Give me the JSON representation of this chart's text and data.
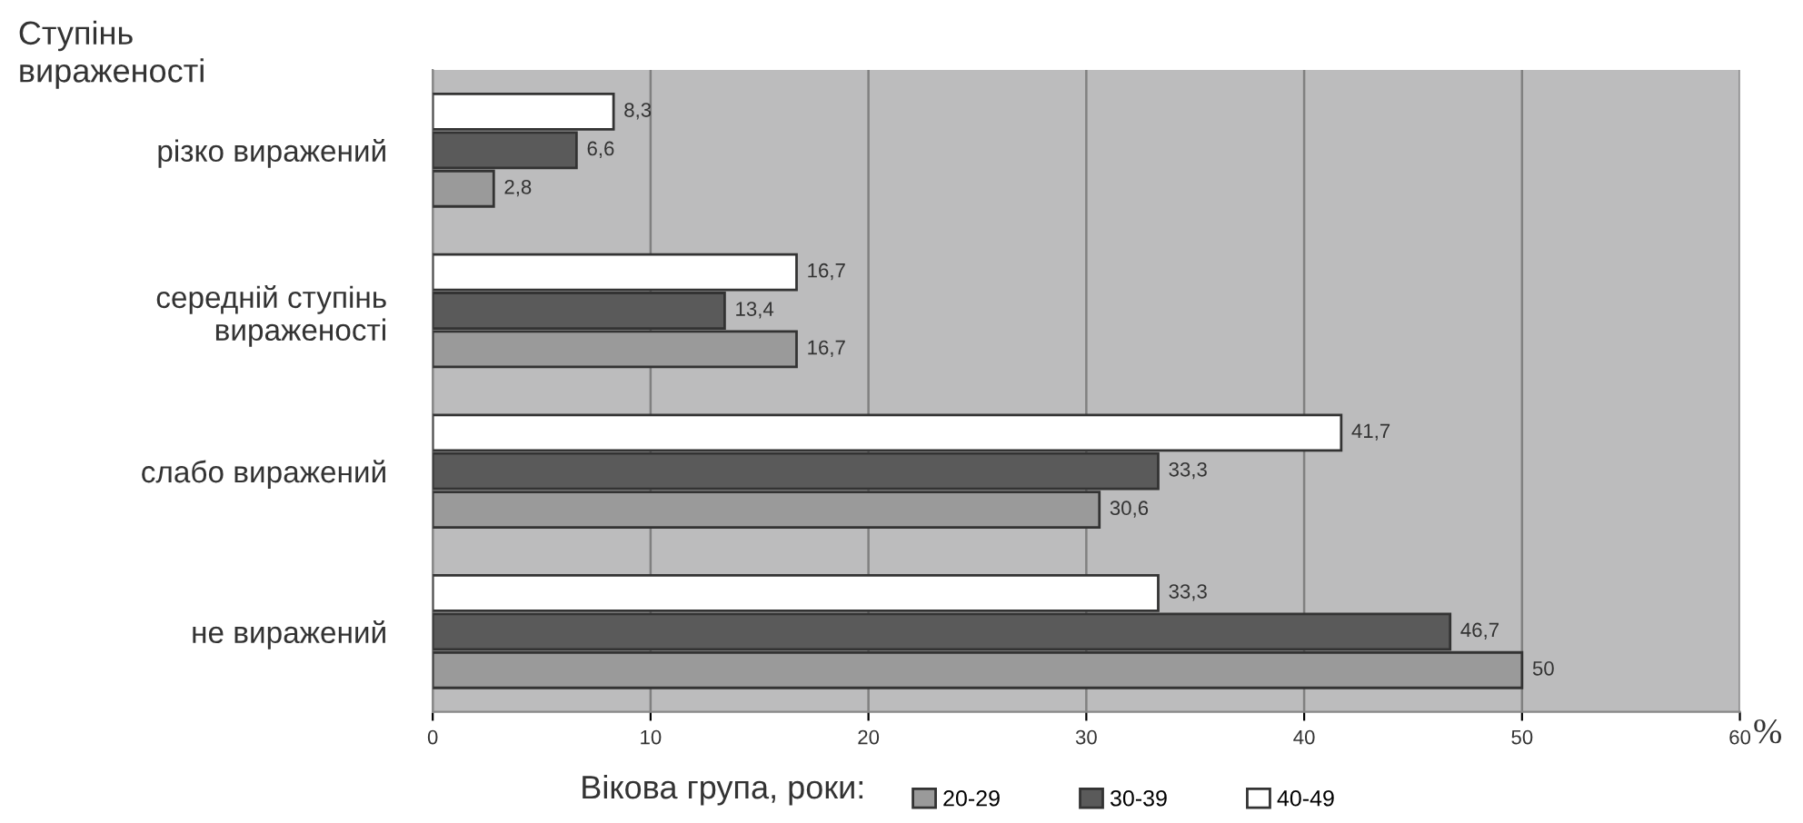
{
  "chart_data": {
    "type": "bar",
    "orientation": "horizontal",
    "ylabel": "Ступінь\nвираженості",
    "xlabel": "%",
    "legend_title": "Вікова група, роки:",
    "categories": [
      "різко виражений",
      "середній ступінь\nвираженості",
      "слабо виражений",
      "не виражений"
    ],
    "series": [
      {
        "name": "20-29",
        "color": "#9a9a9a",
        "values": [
          2.8,
          16.7,
          30.6,
          50
        ],
        "value_labels": [
          "2,8",
          "16,7",
          "30,6",
          "50"
        ]
      },
      {
        "name": "30-39",
        "color": "#5a5a5a",
        "values": [
          6.6,
          13.4,
          33.3,
          46.7
        ],
        "value_labels": [
          "6,6",
          "13,4",
          "33,3",
          "46,7"
        ]
      },
      {
        "name": "40-49",
        "color": "#ffffff",
        "values": [
          8.3,
          16.7,
          41.7,
          33.3
        ],
        "value_labels": [
          "8,3",
          "16,7",
          "41,7",
          "33,3"
        ]
      }
    ],
    "xlim": [
      0,
      60
    ],
    "xticks": [
      0,
      10,
      20,
      30,
      40,
      50,
      60
    ],
    "grid": "x",
    "legend": "bottom"
  }
}
